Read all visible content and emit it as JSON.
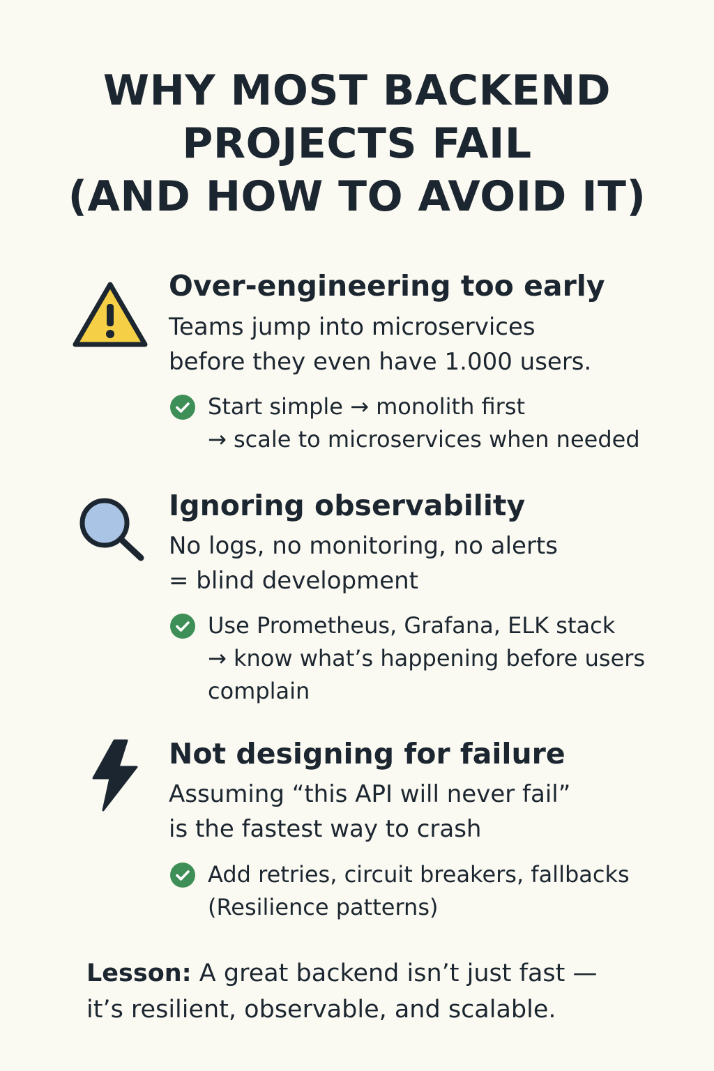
{
  "title": {
    "line1": "WHY MOST BACKEND",
    "line2": "PROJECTS FAIL",
    "line3": "(AND HOW TO AVOID IT)"
  },
  "sections": [
    {
      "icon": "warning-icon",
      "heading": "Over-engineering too early",
      "desc": [
        "Teams jump into microservices",
        "before they even have 1.000 users."
      ],
      "tip": [
        "Start simple → monolith first",
        "→ scale to microservices when needed"
      ]
    },
    {
      "icon": "magnifier-icon",
      "heading": "Ignoring observability",
      "desc": [
        "No logs, no monitoring, no alerts",
        "= blind development"
      ],
      "tip": [
        "Use Prometheus, Grafana, ELK stack",
        "→ know what’s happening before users",
        "complain"
      ]
    },
    {
      "icon": "lightning-icon",
      "heading": "Not designing for failure",
      "desc": [
        "Assuming “this API will never fail”",
        "is the fastest way to crash"
      ],
      "tip": [
        "Add retries, circuit breakers, fallbacks",
        "(Resilience patterns)"
      ]
    }
  ],
  "lesson": {
    "label": "Lesson:",
    "line1": " A great backend isn’t just fast —",
    "line2": "it’s resilient, observable, and scalable."
  },
  "colors": {
    "background": "#fbfaf2",
    "text": "#1c2630",
    "warning": "#f5cf45",
    "magnifier_lens": "#a9c4e4",
    "check": "#3e8e57"
  }
}
